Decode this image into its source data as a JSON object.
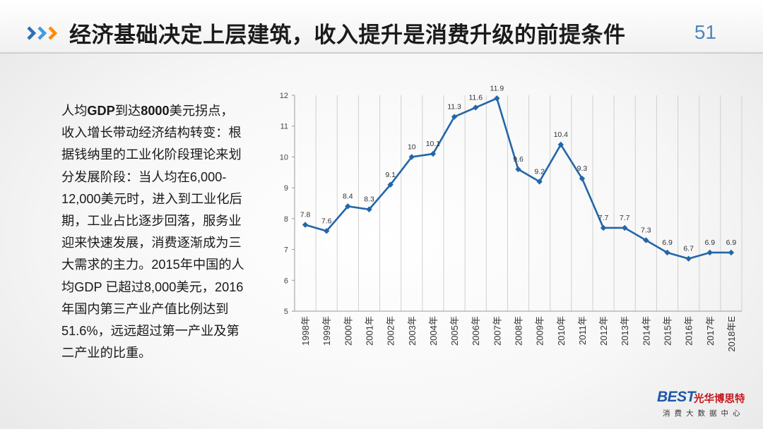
{
  "header": {
    "title": "经济基础决定上层建筑，收入提升是消费升级的前提条件",
    "page_number": "51"
  },
  "body_lines": [
    [
      "人均",
      "GDP",
      "到达",
      "8000",
      "美元拐点，"
    ],
    [
      "收入增长带动经济结构转变：根"
    ],
    [
      "据钱纳里的工业化阶段理论来划"
    ],
    [
      "分发展阶段：当人均在6,000-"
    ],
    [
      "12,000美元时，进入到工业化后"
    ],
    [
      "期，工业占比逐步回落，服务业"
    ],
    [
      "迎来快速发展，消费逐渐成为三"
    ],
    [
      "大需求的主力。2015年中国的人"
    ],
    [
      "均GDP 已超过8,000美元，2016"
    ],
    [
      "年国内第三产业产值比例达到"
    ],
    [
      "51.6%，远远超过第一产业及第"
    ],
    [
      "二产业的比重。"
    ]
  ],
  "logo": {
    "mark": "BEST",
    "name": "光华博思特",
    "tagline": "消费大数据中心"
  },
  "chart_data": {
    "type": "line",
    "categories": [
      "1998年",
      "1999年",
      "2000年",
      "2001年",
      "2002年",
      "2003年",
      "2004年",
      "2005年",
      "2006年",
      "2007年",
      "2008年",
      "2009年",
      "2010年",
      "2011年",
      "2012年",
      "2013年",
      "2014年",
      "2015年",
      "2016年",
      "2017年",
      "2018年E"
    ],
    "values": [
      7.8,
      7.6,
      8.4,
      8.3,
      9.1,
      10,
      10.1,
      11.3,
      11.6,
      11.9,
      9.6,
      9.2,
      10.4,
      9.3,
      7.7,
      7.7,
      7.3,
      6.9,
      6.7,
      6.9,
      6.9
    ],
    "data_labels": [
      "7.8",
      "7.6",
      "8.4",
      "8.3",
      "9.1",
      "10",
      "10.1",
      "11.3",
      "11.6",
      "11.9",
      "9.6",
      "9.2",
      "10.4",
      "9.3",
      "7.7",
      "7.7",
      "7.3",
      "6.9",
      "6.7",
      "6.9",
      "6.9"
    ],
    "ylim": [
      5,
      12
    ],
    "yticks": [
      "5",
      "6",
      "7",
      "8",
      "9",
      "10",
      "11",
      "12"
    ],
    "grid": "vertical",
    "line_color": "#2366a8"
  }
}
